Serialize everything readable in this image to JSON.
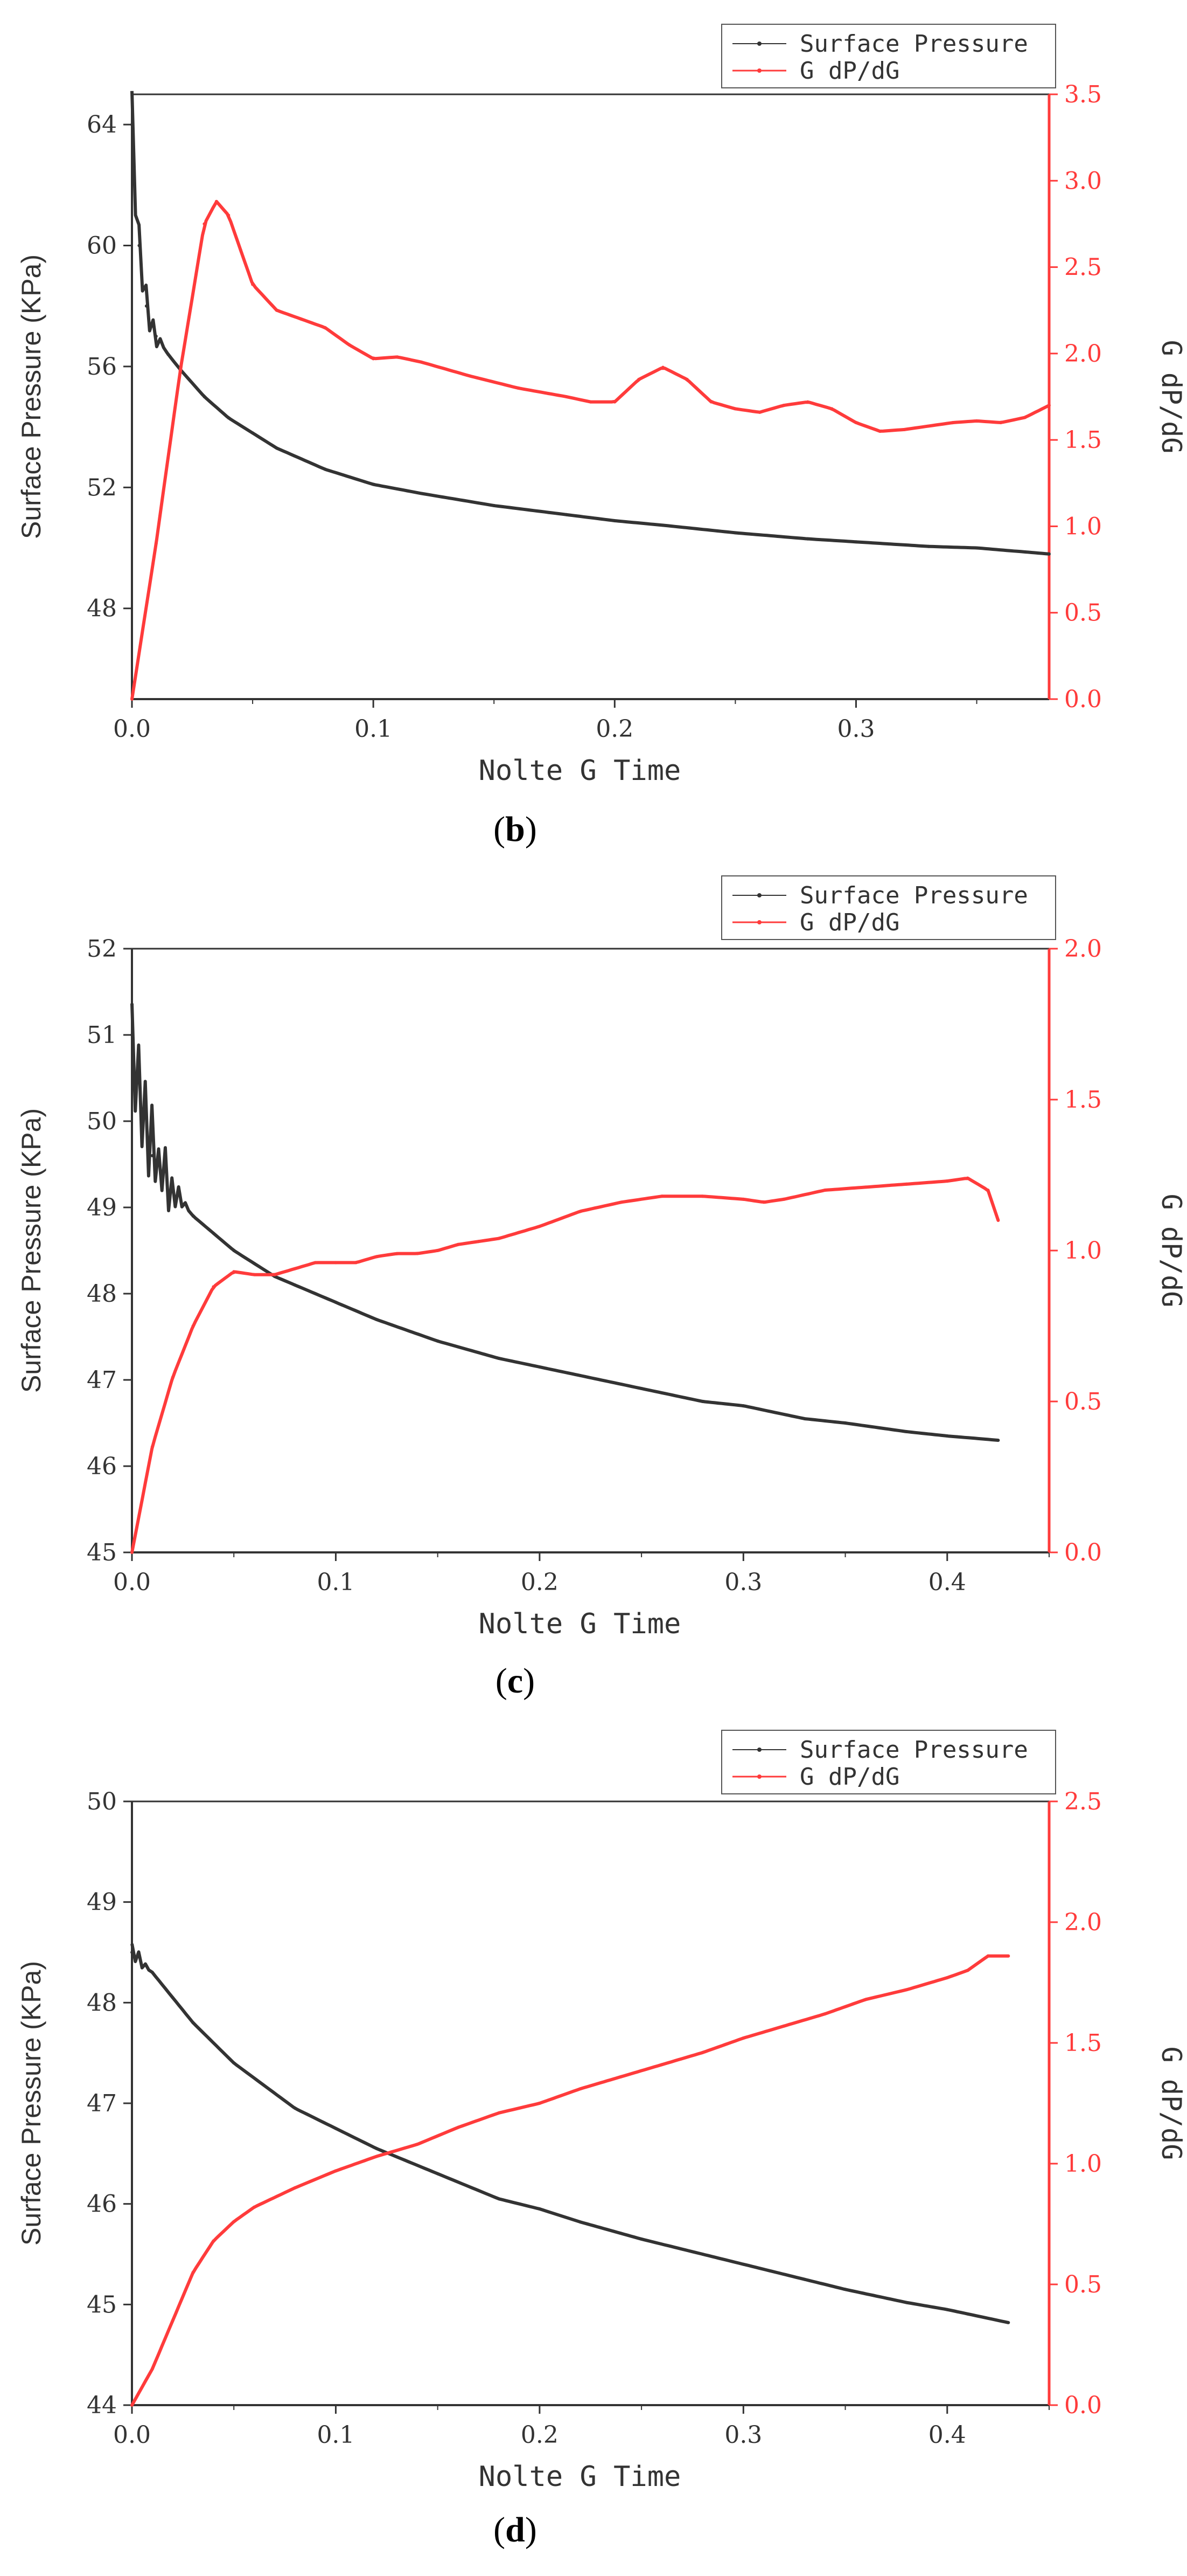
{
  "chart_data": [
    {
      "panel": "b",
      "type": "line",
      "xlabel": "Nolte G Time",
      "ylabel": "Surface Pressure (KPa)",
      "y2label": "G dP/dG",
      "xlim": [
        0,
        0.38
      ],
      "ylim": [
        45,
        65
      ],
      "y2lim": [
        0,
        3.5
      ],
      "xticks": [
        "0.0",
        "0.1",
        "0.2",
        "0.3"
      ],
      "xtick_values": [
        0,
        0.1,
        0.2,
        0.3
      ],
      "yticks": [
        "48",
        "52",
        "56",
        "60",
        "64"
      ],
      "ytick_values": [
        48,
        52,
        56,
        60,
        64
      ],
      "y2ticks": [
        "0.0",
        "0.5",
        "1.0",
        "1.5",
        "2.0",
        "2.5",
        "3.0",
        "3.5"
      ],
      "y2tick_values": [
        0,
        0.5,
        1.0,
        1.5,
        2.0,
        2.5,
        3.0,
        3.5
      ],
      "legend": [
        "Surface Pressure",
        "G dP/dG"
      ],
      "series": [
        {
          "name": "Surface Pressure",
          "axis": "left",
          "color": "#333333",
          "noise": 1.6,
          "noise_until": 0.013,
          "x": [
            0.0,
            0.003,
            0.006,
            0.01,
            0.015,
            0.02,
            0.03,
            0.04,
            0.05,
            0.06,
            0.08,
            0.1,
            0.12,
            0.15,
            0.18,
            0.2,
            0.22,
            0.25,
            0.28,
            0.3,
            0.33,
            0.35,
            0.38
          ],
          "y": [
            64.0,
            60.0,
            58.0,
            57.0,
            56.4,
            55.9,
            55.0,
            54.3,
            53.8,
            53.3,
            52.6,
            52.1,
            51.8,
            51.4,
            51.1,
            50.9,
            50.75,
            50.5,
            50.3,
            50.2,
            50.05,
            50.0,
            49.8
          ]
        },
        {
          "name": "G dP/dG",
          "axis": "right",
          "color": "#ff3b3b",
          "x": [
            0.0,
            0.01,
            0.02,
            0.03,
            0.035,
            0.04,
            0.045,
            0.05,
            0.06,
            0.07,
            0.08,
            0.09,
            0.1,
            0.11,
            0.12,
            0.14,
            0.16,
            0.18,
            0.19,
            0.2,
            0.21,
            0.22,
            0.23,
            0.24,
            0.25,
            0.26,
            0.27,
            0.28,
            0.29,
            0.3,
            0.31,
            0.32,
            0.33,
            0.34,
            0.35,
            0.36,
            0.37,
            0.38
          ],
          "y": [
            0.0,
            0.9,
            1.9,
            2.75,
            2.88,
            2.8,
            2.6,
            2.4,
            2.25,
            2.2,
            2.15,
            2.05,
            1.97,
            1.98,
            1.95,
            1.87,
            1.8,
            1.75,
            1.72,
            1.72,
            1.85,
            1.92,
            1.85,
            1.72,
            1.68,
            1.66,
            1.7,
            1.72,
            1.68,
            1.6,
            1.55,
            1.56,
            1.58,
            1.6,
            1.61,
            1.6,
            1.63,
            1.7
          ]
        }
      ]
    },
    {
      "panel": "c",
      "type": "line",
      "xlabel": "Nolte G Time",
      "ylabel": "Surface Pressure (KPa)",
      "y2label": "G dP/dG",
      "xlim": [
        0,
        0.45
      ],
      "ylim": [
        45,
        52
      ],
      "y2lim": [
        0,
        2.0
      ],
      "xticks": [
        "0.0",
        "0.1",
        "0.2",
        "0.3",
        "0.4"
      ],
      "xtick_values": [
        0,
        0.1,
        0.2,
        0.3,
        0.4
      ],
      "yticks": [
        "45",
        "46",
        "47",
        "48",
        "49",
        "50",
        "51",
        "52"
      ],
      "ytick_values": [
        45,
        46,
        47,
        48,
        49,
        50,
        51,
        52
      ],
      "y2ticks": [
        "0.0",
        "0.5",
        "1.0",
        "1.5",
        "2.0"
      ],
      "y2tick_values": [
        0,
        0.5,
        1.0,
        1.5,
        2.0
      ],
      "legend": [
        "Surface Pressure",
        "G dP/dG"
      ],
      "series": [
        {
          "name": "Surface Pressure",
          "axis": "left",
          "color": "#333333",
          "noise": 0.9,
          "noise_until": 0.028,
          "x": [
            0.0,
            0.005,
            0.01,
            0.02,
            0.03,
            0.04,
            0.05,
            0.06,
            0.07,
            0.08,
            0.1,
            0.12,
            0.15,
            0.18,
            0.2,
            0.22,
            0.25,
            0.28,
            0.3,
            0.33,
            0.35,
            0.38,
            0.4,
            0.425
          ],
          "y": [
            51.0,
            50.0,
            49.6,
            49.2,
            48.9,
            48.7,
            48.5,
            48.35,
            48.2,
            48.1,
            47.9,
            47.7,
            47.45,
            47.25,
            47.15,
            47.05,
            46.9,
            46.75,
            46.7,
            46.55,
            46.5,
            46.4,
            46.35,
            46.3
          ]
        },
        {
          "name": "G dP/dG",
          "axis": "right",
          "color": "#ff3b3b",
          "x": [
            0.0,
            0.01,
            0.02,
            0.03,
            0.04,
            0.05,
            0.06,
            0.07,
            0.08,
            0.09,
            0.1,
            0.11,
            0.12,
            0.13,
            0.14,
            0.15,
            0.16,
            0.17,
            0.18,
            0.19,
            0.2,
            0.22,
            0.24,
            0.26,
            0.28,
            0.3,
            0.31,
            0.32,
            0.34,
            0.36,
            0.38,
            0.4,
            0.41,
            0.42,
            0.425
          ],
          "y": [
            0.0,
            0.35,
            0.58,
            0.75,
            0.88,
            0.93,
            0.92,
            0.92,
            0.94,
            0.96,
            0.96,
            0.96,
            0.98,
            0.99,
            0.99,
            1.0,
            1.02,
            1.03,
            1.04,
            1.06,
            1.08,
            1.13,
            1.16,
            1.18,
            1.18,
            1.17,
            1.16,
            1.17,
            1.2,
            1.21,
            1.22,
            1.23,
            1.24,
            1.2,
            1.1
          ]
        }
      ]
    },
    {
      "panel": "d",
      "type": "line",
      "xlabel": "Nolte G Time",
      "ylabel": "Surface Pressure (KPa)",
      "y2label": "G dP/dG",
      "xlim": [
        0,
        0.45
      ],
      "ylim": [
        44,
        50
      ],
      "y2lim": [
        0,
        2.5
      ],
      "xticks": [
        "0.0",
        "0.1",
        "0.2",
        "0.3",
        "0.4"
      ],
      "xtick_values": [
        0,
        0.1,
        0.2,
        0.3,
        0.4
      ],
      "yticks": [
        "44",
        "45",
        "46",
        "47",
        "48",
        "49",
        "50"
      ],
      "ytick_values": [
        44,
        45,
        46,
        47,
        48,
        49,
        50
      ],
      "y2ticks": [
        "0.0",
        "0.5",
        "1.0",
        "1.5",
        "2.0",
        "2.5"
      ],
      "y2tick_values": [
        0,
        0.5,
        1.0,
        1.5,
        2.0,
        2.5
      ],
      "legend": [
        "Surface Pressure",
        "G dP/dG"
      ],
      "series": [
        {
          "name": "Surface Pressure",
          "axis": "left",
          "color": "#333333",
          "noise": 0.12,
          "noise_until": 0.01,
          "x": [
            0.0,
            0.01,
            0.02,
            0.03,
            0.05,
            0.08,
            0.1,
            0.12,
            0.15,
            0.18,
            0.2,
            0.22,
            0.25,
            0.28,
            0.3,
            0.33,
            0.35,
            0.38,
            0.4,
            0.43
          ],
          "y": [
            48.5,
            48.3,
            48.05,
            47.8,
            47.4,
            46.95,
            46.75,
            46.55,
            46.3,
            46.05,
            45.95,
            45.82,
            45.65,
            45.5,
            45.4,
            45.25,
            45.15,
            45.02,
            44.95,
            44.82
          ]
        },
        {
          "name": "G dP/dG",
          "axis": "right",
          "color": "#ff3b3b",
          "x": [
            0.0,
            0.01,
            0.02,
            0.03,
            0.04,
            0.05,
            0.06,
            0.08,
            0.1,
            0.12,
            0.14,
            0.16,
            0.18,
            0.2,
            0.22,
            0.24,
            0.26,
            0.28,
            0.3,
            0.32,
            0.34,
            0.36,
            0.38,
            0.4,
            0.41,
            0.42,
            0.43
          ],
          "y": [
            0.0,
            0.15,
            0.35,
            0.55,
            0.68,
            0.76,
            0.82,
            0.9,
            0.97,
            1.03,
            1.08,
            1.15,
            1.21,
            1.25,
            1.31,
            1.36,
            1.41,
            1.46,
            1.52,
            1.57,
            1.62,
            1.68,
            1.72,
            1.77,
            1.8,
            1.86,
            1.86
          ]
        }
      ]
    }
  ]
}
